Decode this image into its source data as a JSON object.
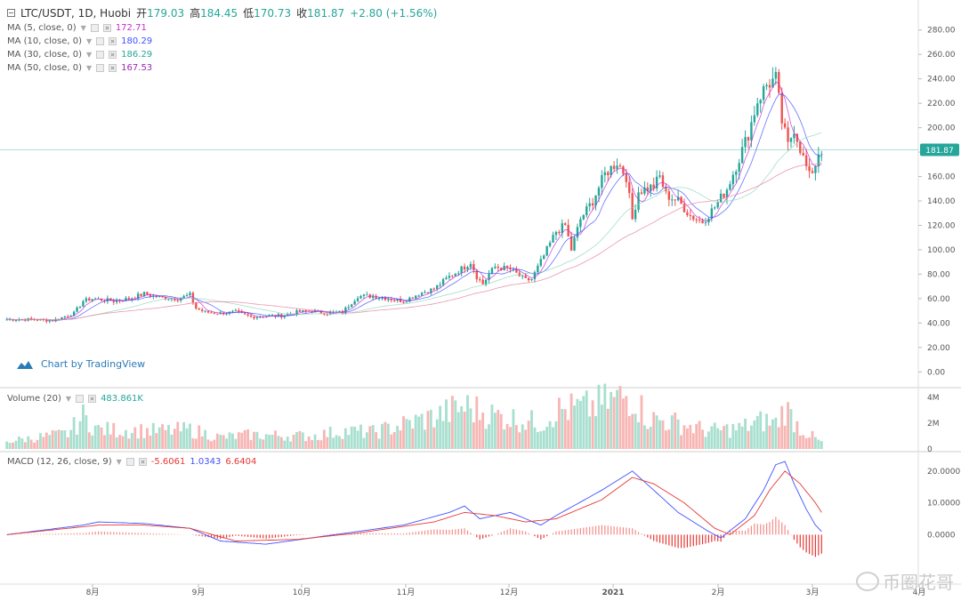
{
  "header": {
    "symbol": "LTC/USDT, 1D, Huobi",
    "open_label": "开",
    "open": "179.03",
    "high_label": "高",
    "high": "184.45",
    "low_label": "低",
    "low": "170.73",
    "close_label": "收",
    "close": "181.87",
    "change": "+2.80 (+1.56%)"
  },
  "indicators": {
    "ma5": {
      "label": "MA (5, close, 0)",
      "value": "172.71",
      "color": "#c52bcf"
    },
    "ma10": {
      "label": "MA (10, close, 0)",
      "value": "180.29",
      "color": "#3f51ff"
    },
    "ma30": {
      "label": "MA (30, close, 0)",
      "value": "186.29",
      "color": "#2ecc71"
    },
    "ma50": {
      "label": "MA (50, close, 0)",
      "value": "167.53",
      "color": "#9c27b0"
    },
    "volume": {
      "label": "Volume (20)",
      "value": "483.861K",
      "color": "#26a69a"
    },
    "macd": {
      "label": "MACD (12, 26, close, 9)",
      "hist": "-5.6061",
      "macd": "1.0343",
      "signal": "6.6404",
      "hist_color": "#e53935",
      "macd_color": "#3f51ff",
      "signal_color": "#e53935"
    }
  },
  "branding": {
    "tradingview": "Chart by TradingView",
    "watermark": "币圈花哥"
  },
  "colors": {
    "up": "#26a69a",
    "down": "#ef5350",
    "up_vol": "#a8dfcf",
    "down_vol": "#f7b6b4",
    "ma_slow": "#e57e9b",
    "macd": "#3f51ff",
    "signal": "#e53935"
  },
  "chart_data": {
    "type": "candlestick",
    "price_axis": {
      "ticks": [
        "280.00",
        "260.00",
        "240.00",
        "220.00",
        "200.00",
        "180.00",
        "160.00",
        "140.00",
        "120.00",
        "100.00",
        "80.00",
        "60.00",
        "40.00",
        "20.00",
        "0.00"
      ],
      "ylim": [
        -10,
        290
      ]
    },
    "last_price": "181.87",
    "volume_axis": {
      "ticks": [
        "4M",
        "2M",
        "0"
      ],
      "ylim": [
        0,
        4500000
      ]
    },
    "macd_axis": {
      "ticks": [
        "20.0000",
        "10.0000",
        "0.0000"
      ],
      "ylim": [
        -15,
        25
      ]
    },
    "time_axis": {
      "ticks": [
        "8月",
        "9月",
        "10月",
        "11月",
        "12月",
        "2021",
        "2月",
        "3月",
        "4月"
      ]
    },
    "close_keypoints": [
      [
        0,
        43
      ],
      [
        8,
        43
      ],
      [
        15,
        42
      ],
      [
        22,
        48
      ],
      [
        25,
        58
      ],
      [
        28,
        60
      ],
      [
        35,
        58
      ],
      [
        40,
        60
      ],
      [
        45,
        64
      ],
      [
        50,
        61
      ],
      [
        56,
        60
      ],
      [
        60,
        63
      ],
      [
        62,
        52
      ],
      [
        65,
        49
      ],
      [
        70,
        48
      ],
      [
        75,
        49
      ],
      [
        80,
        45
      ],
      [
        85,
        46
      ],
      [
        90,
        46
      ],
      [
        95,
        49
      ],
      [
        100,
        50
      ],
      [
        105,
        48
      ],
      [
        110,
        49
      ],
      [
        115,
        62
      ],
      [
        120,
        62
      ],
      [
        125,
        60
      ],
      [
        130,
        58
      ],
      [
        135,
        64
      ],
      [
        140,
        68
      ],
      [
        145,
        78
      ],
      [
        150,
        86
      ],
      [
        152,
        90
      ],
      [
        154,
        78
      ],
      [
        156,
        72
      ],
      [
        158,
        80
      ],
      [
        160,
        86
      ],
      [
        165,
        84
      ],
      [
        170,
        75
      ],
      [
        172,
        76
      ],
      [
        176,
        95
      ],
      [
        180,
        115
      ],
      [
        183,
        120
      ],
      [
        185,
        100
      ],
      [
        188,
        125
      ],
      [
        192,
        140
      ],
      [
        196,
        162
      ],
      [
        200,
        172
      ],
      [
        203,
        160
      ],
      [
        205,
        125
      ],
      [
        207,
        148
      ],
      [
        212,
        152
      ],
      [
        214,
        160
      ],
      [
        216,
        145
      ],
      [
        220,
        140
      ],
      [
        224,
        128
      ],
      [
        228,
        123
      ],
      [
        232,
        135
      ],
      [
        236,
        150
      ],
      [
        240,
        175
      ],
      [
        243,
        195
      ],
      [
        246,
        222
      ],
      [
        249,
        235
      ],
      [
        252,
        240
      ],
      [
        254,
        205
      ],
      [
        256,
        185
      ],
      [
        258,
        200
      ],
      [
        261,
        175
      ],
      [
        263,
        160
      ],
      [
        265,
        170
      ],
      [
        266,
        180
      ],
      [
        267,
        182
      ]
    ],
    "volume_keypoints": [
      [
        0,
        0.6
      ],
      [
        20,
        1.2
      ],
      [
        25,
        2.5
      ],
      [
        30,
        1.5
      ],
      [
        50,
        1.4
      ],
      [
        60,
        1.5
      ],
      [
        70,
        0.9
      ],
      [
        80,
        1.1
      ],
      [
        100,
        1.0
      ],
      [
        110,
        1.4
      ],
      [
        120,
        1.3
      ],
      [
        140,
        2.5
      ],
      [
        150,
        3.3
      ],
      [
        160,
        2.6
      ],
      [
        175,
        2.0
      ],
      [
        180,
        3.0
      ],
      [
        190,
        3.2
      ],
      [
        200,
        3.9
      ],
      [
        205,
        4.2
      ],
      [
        210,
        2.4
      ],
      [
        220,
        2.0
      ],
      [
        230,
        1.4
      ],
      [
        240,
        1.6
      ],
      [
        248,
        2.2
      ],
      [
        252,
        2.0
      ],
      [
        255,
        3.2
      ],
      [
        260,
        1.6
      ],
      [
        267,
        0.5
      ]
    ],
    "macd_keypoints": [
      [
        0,
        0
      ],
      [
        25,
        3
      ],
      [
        30,
        4
      ],
      [
        45,
        3.5
      ],
      [
        60,
        2
      ],
      [
        70,
        -2
      ],
      [
        85,
        -3
      ],
      [
        100,
        -1
      ],
      [
        115,
        1
      ],
      [
        130,
        3
      ],
      [
        145,
        7
      ],
      [
        150,
        9
      ],
      [
        155,
        5
      ],
      [
        165,
        7
      ],
      [
        175,
        3
      ],
      [
        180,
        6
      ],
      [
        195,
        14
      ],
      [
        205,
        20
      ],
      [
        212,
        14
      ],
      [
        220,
        7
      ],
      [
        230,
        1
      ],
      [
        234,
        -1
      ],
      [
        242,
        5
      ],
      [
        248,
        14
      ],
      [
        252,
        22
      ],
      [
        255,
        23
      ],
      [
        258,
        16
      ],
      [
        262,
        8
      ],
      [
        265,
        3
      ],
      [
        267,
        1
      ]
    ],
    "signal_keypoints": [
      [
        0,
        0
      ],
      [
        30,
        3
      ],
      [
        45,
        3
      ],
      [
        60,
        2
      ],
      [
        75,
        -2
      ],
      [
        95,
        -1.5
      ],
      [
        115,
        0.5
      ],
      [
        140,
        4
      ],
      [
        150,
        7
      ],
      [
        160,
        6
      ],
      [
        170,
        4
      ],
      [
        180,
        5
      ],
      [
        195,
        11
      ],
      [
        205,
        18
      ],
      [
        212,
        16
      ],
      [
        222,
        10
      ],
      [
        232,
        2
      ],
      [
        237,
        0
      ],
      [
        245,
        6
      ],
      [
        250,
        14
      ],
      [
        255,
        20
      ],
      [
        260,
        16
      ],
      [
        265,
        10
      ],
      [
        267,
        7
      ]
    ]
  }
}
